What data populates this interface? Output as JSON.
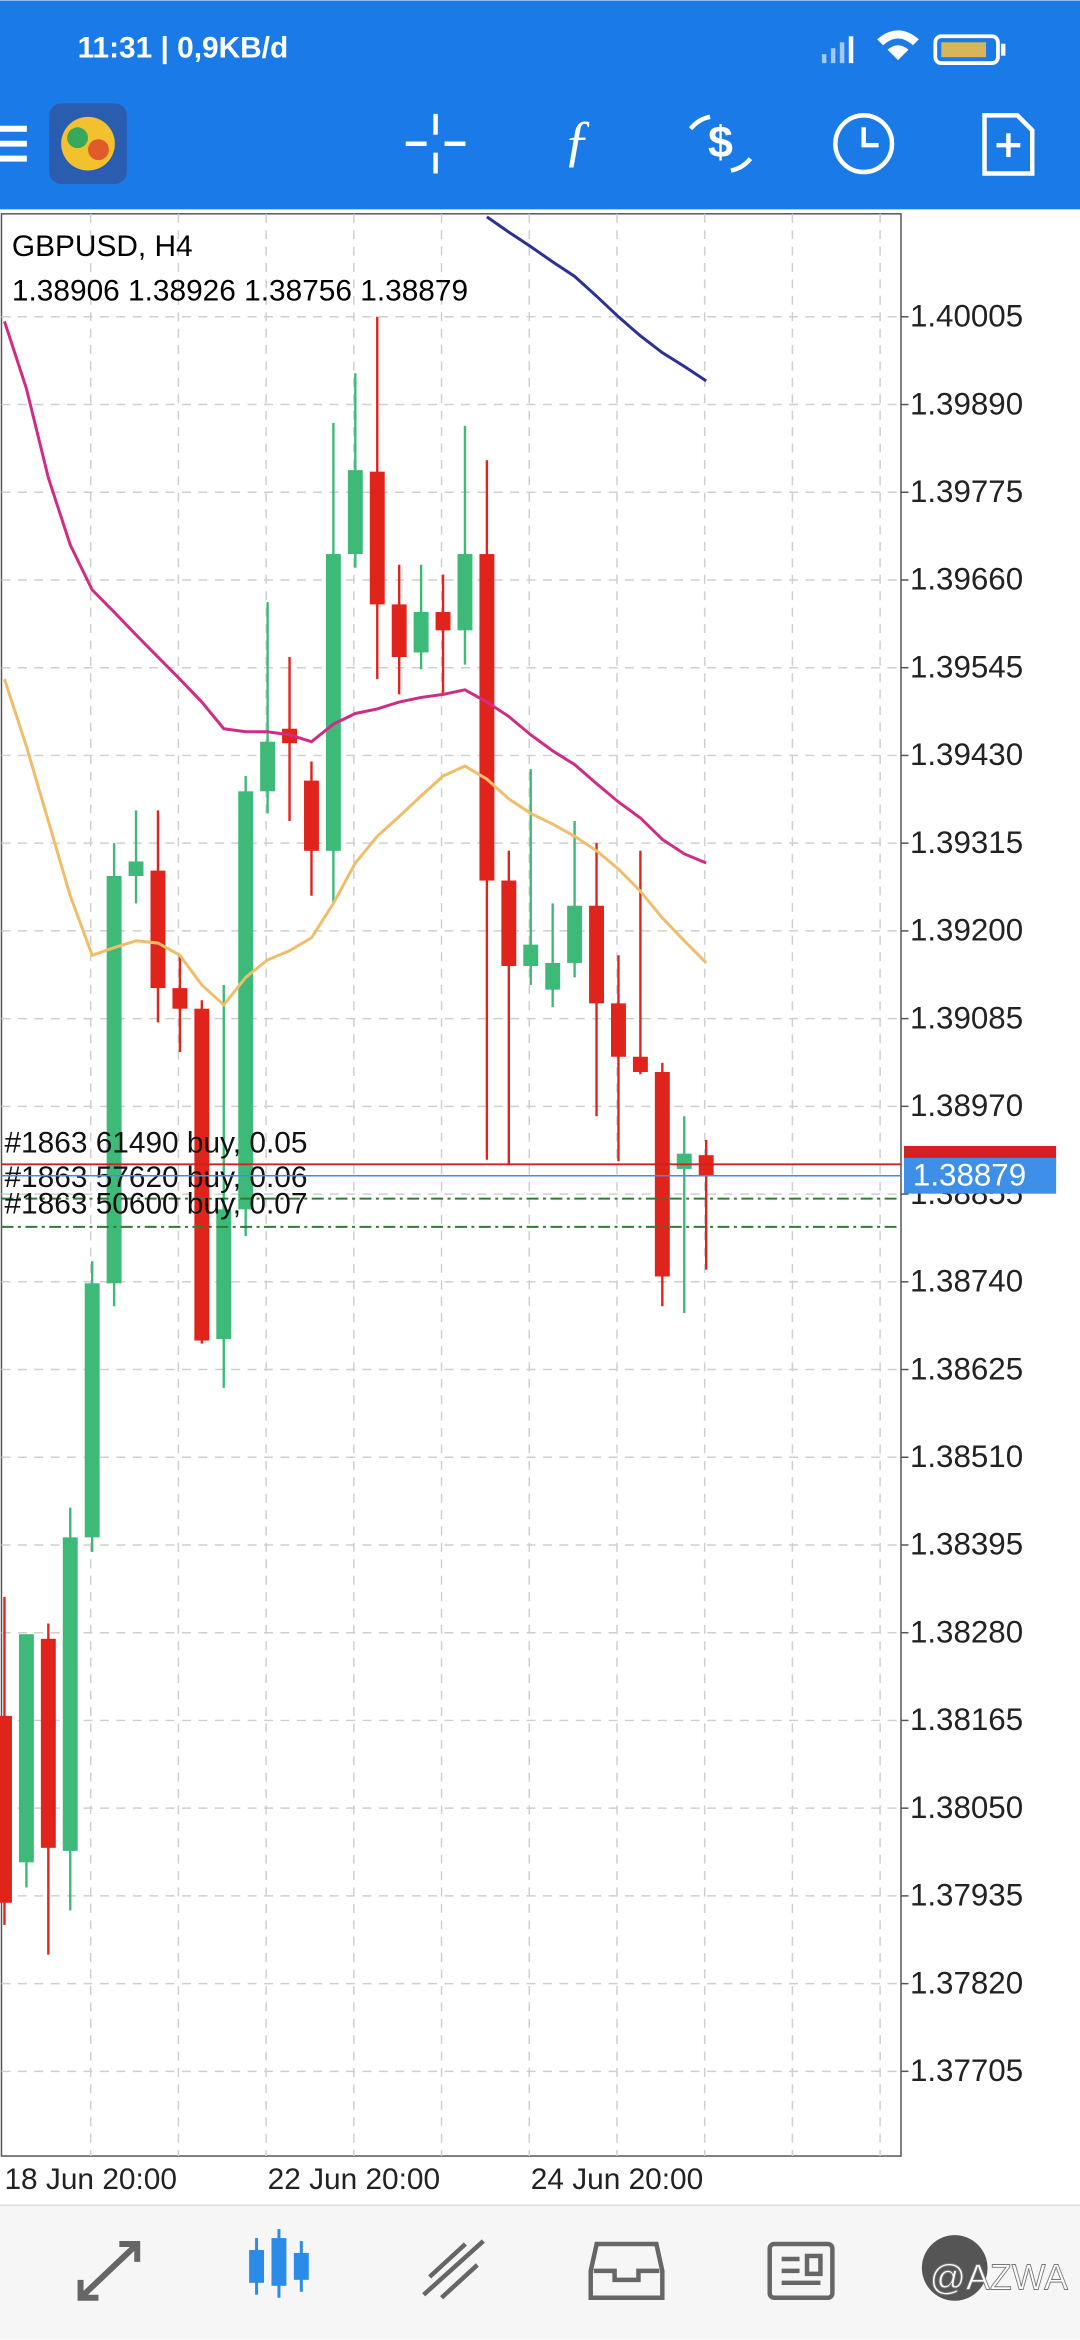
{
  "status_bar": {
    "time": "11:31 | 0,9KB/d"
  },
  "chart_data": {
    "type": "candlestick",
    "title": "GBPUSD, H4",
    "subtitle": "1.38906 1.38926 1.38756 1.38879",
    "categories": [
      "18 Jun 20:00",
      null,
      null,
      null,
      null,
      null,
      null,
      null,
      null,
      null,
      null,
      null,
      "22 Jun 20:00",
      null,
      null,
      null,
      null,
      null,
      null,
      null,
      null,
      null,
      null,
      null,
      "24 Jun 20:00",
      null,
      null,
      null,
      null,
      null,
      null,
      null,
      null
    ],
    "open": [
      1.38171,
      1.37979,
      1.38272,
      1.37994,
      1.38405,
      1.38738,
      1.39272,
      1.39279,
      1.39125,
      1.39098,
      1.38665,
      1.38835,
      1.39383,
      1.39465,
      1.39397,
      1.39305,
      1.39694,
      1.39802,
      1.39628,
      1.39565,
      1.39618,
      1.39594,
      1.39694,
      1.39266,
      1.39154,
      1.39123,
      1.39158,
      1.39233,
      1.39105,
      1.39035,
      1.39015,
      1.38888,
      1.38906
    ],
    "high": [
      1.38327,
      1.38278,
      1.38292,
      1.38444,
      1.38767,
      1.39315,
      1.39358,
      1.39358,
      1.39168,
      1.39109,
      1.39129,
      1.39403,
      1.39631,
      1.39559,
      1.39422,
      1.39866,
      1.39931,
      1.40005,
      1.3968,
      1.3968,
      1.39667,
      1.39862,
      1.39817,
      1.39305,
      1.39412,
      1.39236,
      1.39344,
      1.39315,
      1.39168,
      1.39305,
      1.39027,
      1.38957,
      1.38926
    ],
    "low": [
      1.37897,
      1.37946,
      1.37858,
      1.37916,
      1.38386,
      1.38708,
      1.39236,
      1.3908,
      1.39041,
      1.38659,
      1.38601,
      1.388,
      1.39354,
      1.39344,
      1.39246,
      1.39236,
      1.39676,
      1.3953,
      1.3951,
      1.39543,
      1.3951,
      1.39549,
      1.389,
      1.38894,
      1.39129,
      1.391,
      1.39139,
      1.38957,
      1.38898,
      1.39012,
      1.38708,
      1.38699,
      1.38756
    ],
    "close": [
      1.37926,
      1.38278,
      1.37998,
      1.38405,
      1.38738,
      1.39272,
      1.39291,
      1.39125,
      1.39098,
      1.38663,
      1.38835,
      1.39383,
      1.39448,
      1.39446,
      1.39305,
      1.39694,
      1.39804,
      1.39628,
      1.39559,
      1.39618,
      1.39594,
      1.39694,
      1.39266,
      1.39154,
      1.39182,
      1.39158,
      1.39233,
      1.39105,
      1.39035,
      1.39015,
      1.38747,
      1.38908,
      1.38879
    ],
    "up_color": "#3dba78",
    "down_color": "#e0241b",
    "series": [
      {
        "color": "#2b3196",
        "values": [
          null,
          null,
          null,
          null,
          null,
          null,
          null,
          null,
          null,
          null,
          null,
          null,
          null,
          null,
          null,
          null,
          null,
          null,
          null,
          null,
          null,
          null,
          1.40136,
          1.40116,
          1.40097,
          1.40077,
          1.40058,
          1.40032,
          1.40005,
          1.3998,
          1.39958,
          1.3994,
          1.39921
        ]
      },
      {
        "color": "#cf2c86",
        "values": [
          1.39999,
          1.39911,
          1.39794,
          1.39706,
          1.39647,
          1.39618,
          1.39588,
          1.39559,
          1.3953,
          1.395,
          1.39465,
          1.39461,
          1.39461,
          1.39457,
          1.39448,
          1.39471,
          1.39485,
          1.39491,
          1.395,
          1.39506,
          1.3951,
          1.39516,
          1.395,
          1.39481,
          1.39457,
          1.39436,
          1.39418,
          1.39393,
          1.39369,
          1.39348,
          1.3932,
          1.39301,
          1.39289
        ]
      },
      {
        "color": "#f0be6a",
        "values": [
          1.3953,
          1.39442,
          1.39344,
          1.39246,
          1.39168,
          1.39178,
          1.39187,
          1.39184,
          1.39168,
          1.39129,
          1.39103,
          1.39139,
          1.39162,
          1.39174,
          1.39191,
          1.39236,
          1.39289,
          1.39324,
          1.3935,
          1.39377,
          1.39403,
          1.39416,
          1.39399,
          1.39373,
          1.39354,
          1.3934,
          1.39324,
          1.39305,
          1.39281,
          1.39252,
          1.39217,
          1.39187,
          1.39158
        ]
      }
    ],
    "orders": [
      {
        "label": "#1863 61490 buy, 0.05",
        "price": 1.38894,
        "color": "#d42020",
        "dashed": false
      },
      {
        "label": "#1863 57620 buy, 0.06",
        "price": 1.38849,
        "color": "#2e7d32",
        "dashed": true
      },
      {
        "label": "#1863 50600 buy, 0.07",
        "price": 1.38812,
        "color": "#2e7d32",
        "dashed": true
      }
    ],
    "current_price": 1.38879,
    "price_color": "#3d8fe8",
    "ylim": [
      1.37594,
      1.4014
    ],
    "yticks": [
      1.40005,
      {
        "value": 1.3989,
        "label": "1.39890"
      },
      1.39775,
      {
        "value": 1.3966,
        "label": "1.39660"
      },
      1.39545,
      {
        "value": 1.3943,
        "label": "1.39430"
      },
      1.39315,
      {
        "value": 1.392,
        "label": "1.39200"
      },
      1.39085,
      {
        "value": 1.3897,
        "label": "1.38970"
      },
      1.38855,
      {
        "value": 1.3874,
        "label": "1.38740"
      },
      1.38625,
      {
        "value": 1.3851,
        "label": "1.38510"
      },
      1.38395,
      {
        "value": 1.3828,
        "label": "1.38280"
      },
      1.38165,
      {
        "value": 1.3805,
        "label": "1.38050"
      },
      1.37935,
      {
        "value": 1.3782,
        "label": "1.37820"
      },
      1.37705
    ],
    "grid": true
  },
  "watermark": "@AZWA"
}
